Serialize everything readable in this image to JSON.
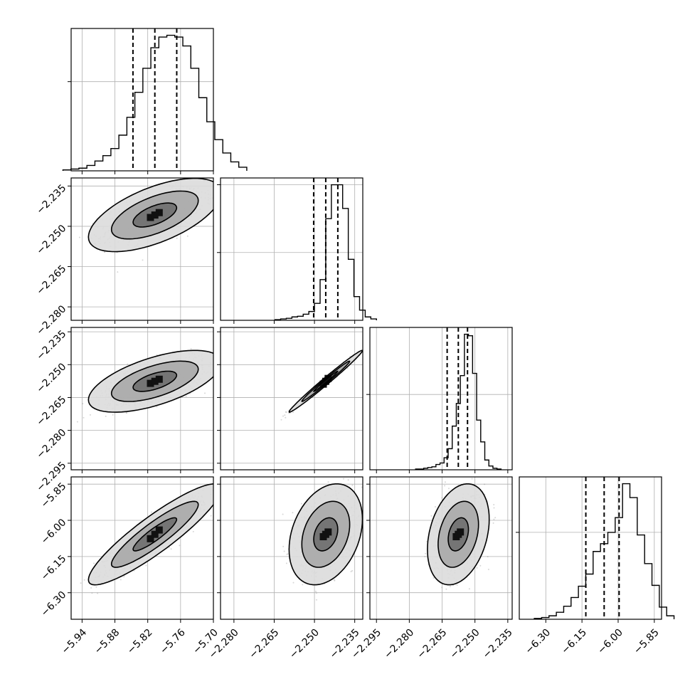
{
  "chart_data": {
    "type": "corner",
    "variables": [
      {
        "name": "",
        "quantiles": [
          -5.847,
          -5.807,
          -5.767
        ],
        "range": [
          -5.96,
          -5.7
        ],
        "ticks": [
          -5.94,
          -5.88,
          -5.82,
          -5.76,
          -5.7
        ],
        "tick_labels": [
          "−5.94",
          "−5.88",
          "−5.82",
          "−5.76",
          "−5.70"
        ]
      },
      {
        "name": "",
        "quantiles": [
          -2.2503,
          -2.2458,
          -2.2413
        ],
        "range": [
          -2.285,
          -2.232
        ],
        "ticks": [
          -2.28,
          -2.265,
          -2.25,
          -2.235
        ],
        "tick_labels": [
          "−2.280",
          "−2.265",
          "−2.250",
          "−2.235"
        ]
      },
      {
        "name": "",
        "quantiles": [
          -2.2627,
          -2.2576,
          -2.2534
        ],
        "range": [
          -2.298,
          -2.233
        ],
        "ticks": [
          -2.295,
          -2.28,
          -2.265,
          -2.25,
          -2.235
        ],
        "tick_labels": [
          "−2.295",
          "−2.280",
          "−2.265",
          "−2.250",
          "−2.235"
        ]
      },
      {
        "name": "",
        "quantiles": [
          -6.134,
          -6.058,
          -5.996
        ],
        "range": [
          -6.41,
          -5.82
        ],
        "ticks": [
          -6.3,
          -6.15,
          -6.0,
          -5.85
        ],
        "tick_labels": [
          "−6.30",
          "−6.15",
          "−6.00",
          "−5.85"
        ]
      }
    ],
    "histograms": [
      {
        "var": 0,
        "counts": [
          1,
          2,
          3,
          6,
          11,
          17,
          25,
          40,
          60,
          88,
          115,
          138,
          150,
          152,
          150,
          140,
          115,
          82,
          55,
          35,
          20,
          10,
          4
        ]
      },
      {
        "var": 1,
        "counts": [
          1,
          2,
          3,
          5,
          6,
          9,
          13,
          25,
          60,
          150,
          200,
          200,
          165,
          90,
          35,
          15,
          5,
          2
        ]
      },
      {
        "var": 2,
        "counts": [
          1,
          1,
          2,
          3,
          4,
          7,
          9,
          16,
          28,
          58,
          88,
          125,
          180,
          178,
          128,
          66,
          37,
          13,
          5,
          2,
          1
        ]
      },
      {
        "var": 3,
        "counts": [
          1,
          2,
          4,
          8,
          15,
          25,
          38,
          52,
          78,
          87,
          100,
          117,
          156,
          140,
          97,
          64,
          39,
          14,
          4
        ]
      }
    ],
    "correlations": [
      [
        1,
        0.6,
        0.6,
        0.9
      ],
      [
        0.6,
        1,
        0.99,
        0.3
      ],
      [
        0.6,
        0.99,
        1,
        0.3
      ],
      [
        0.9,
        0.3,
        0.3,
        1
      ]
    ],
    "contour_levels": [
      0.39,
      0.86,
      0.99
    ],
    "grid": true
  }
}
